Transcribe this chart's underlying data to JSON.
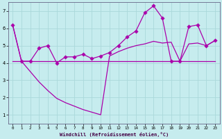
{
  "xlabel": "Windchill (Refroidissement éolien,°C)",
  "bg_color": "#c6ecee",
  "grid_color": "#aad8da",
  "line_color": "#aa00aa",
  "xlim": [
    -0.5,
    23.5
  ],
  "ylim": [
    0.5,
    7.5
  ],
  "xticks": [
    0,
    1,
    2,
    3,
    4,
    5,
    6,
    7,
    8,
    9,
    10,
    11,
    12,
    13,
    14,
    15,
    16,
    17,
    18,
    19,
    20,
    21,
    22,
    23
  ],
  "yticks": [
    1,
    2,
    3,
    4,
    5,
    6,
    7
  ],
  "series_zigzag_x": [
    0,
    1,
    2,
    3,
    4,
    5,
    6,
    7,
    8,
    9,
    10,
    11,
    12,
    13,
    14,
    15,
    16,
    17,
    18,
    19,
    20,
    21,
    22,
    23
  ],
  "series_zigzag_y": [
    6.2,
    4.1,
    4.1,
    4.85,
    5.0,
    4.0,
    4.35,
    4.35,
    4.5,
    4.25,
    4.4,
    4.6,
    5.0,
    5.5,
    5.85,
    6.9,
    7.3,
    6.6,
    4.1,
    4.1,
    6.1,
    6.2,
    5.0,
    5.3
  ],
  "series_diagonal_x": [
    0,
    1,
    2,
    3,
    4,
    5,
    6,
    7,
    8,
    9,
    10,
    11,
    12,
    13,
    14,
    15,
    16,
    17,
    18,
    19,
    20,
    21,
    22,
    23
  ],
  "series_diagonal_y": [
    6.2,
    4.1,
    3.5,
    2.9,
    2.4,
    1.95,
    1.7,
    1.5,
    1.3,
    1.15,
    1.0,
    4.4,
    4.65,
    4.85,
    5.0,
    5.1,
    5.25,
    5.15,
    5.2,
    4.1,
    5.1,
    5.15,
    5.0,
    5.3
  ],
  "series_flat_x": [
    0,
    1,
    2,
    3,
    4,
    5,
    6,
    7,
    8,
    9,
    10,
    11,
    12,
    13,
    14,
    15,
    16,
    17,
    18,
    19,
    20,
    21,
    22,
    23
  ],
  "series_flat_y": [
    4.1,
    4.1,
    4.1,
    4.1,
    4.1,
    4.1,
    4.1,
    4.1,
    4.1,
    4.1,
    4.1,
    4.1,
    4.1,
    4.1,
    4.1,
    4.1,
    4.1,
    4.1,
    4.1,
    4.1,
    4.1,
    4.1,
    4.1,
    4.1
  ]
}
